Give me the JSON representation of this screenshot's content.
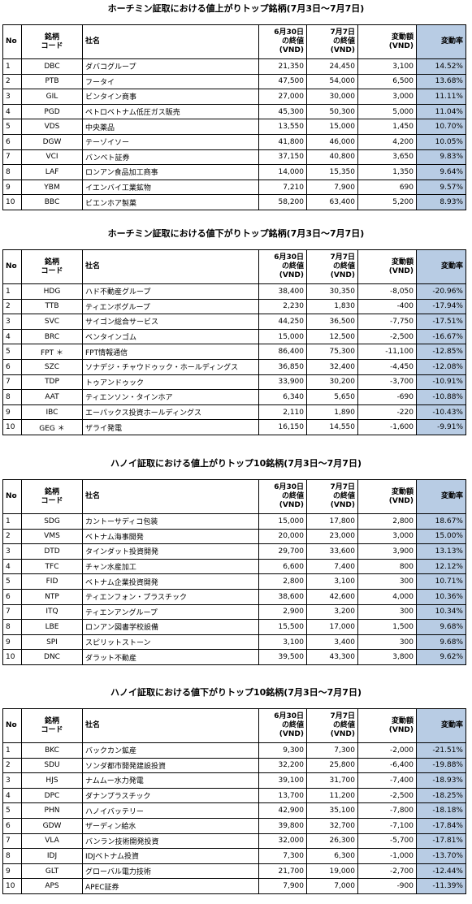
{
  "tables": [
    {
      "title": "ホーチミン証取における値上がりトップ銘柄(7月3日～7月7日)",
      "header": [
        "No",
        "銘柄\nコード",
        "社名",
        "6月30日\nの終値\n(VND)",
        "7月7日\nの終値\n(VND)",
        "変動額\n(VND)",
        "変動率"
      ],
      "rows": [
        [
          "1",
          "DBC",
          "ダバコグループ",
          "21,350",
          "24,450",
          "3,100",
          "14.52%"
        ],
        [
          "2",
          "PTB",
          "フータイ",
          "47,500",
          "54,000",
          "6,500",
          "13.68%"
        ],
        [
          "3",
          "GIL",
          "ビンタイン商事",
          "27,000",
          "30,000",
          "3,000",
          "11.11%"
        ],
        [
          "4",
          "PGD",
          "ペトロベトナム低圧ガス販売",
          "45,300",
          "50,300",
          "5,000",
          "11.04%"
        ],
        [
          "5",
          "VDS",
          "中央薬品",
          "13,550",
          "15,000",
          "1,450",
          "10.70%"
        ],
        [
          "6",
          "DGW",
          "テーゾイソー",
          "41,800",
          "46,000",
          "4,200",
          "10.05%"
        ],
        [
          "7",
          "VCI",
          "バンベト証券",
          "37,150",
          "40,800",
          "3,650",
          "9.83%"
        ],
        [
          "8",
          "LAF",
          "ロンアン食品加工商事",
          "14,000",
          "15,350",
          "1,350",
          "9.64%"
        ],
        [
          "9",
          "YBM",
          "イエンバイ工業鉱物",
          "7,210",
          "7,900",
          "690",
          "9.57%"
        ],
        [
          "10",
          "BBC",
          "ビエンホア製菓",
          "58,200",
          "63,400",
          "5,200",
          "8.93%"
        ]
      ]
    },
    {
      "title": "ホーチミン証取における値下がりトップ銘柄(7月3日～7月7日)",
      "header": [
        "No",
        "銘柄\nコード",
        "社名",
        "6月30日\nの終値\n(VND)",
        "7月7日\nの終値\n(VND)",
        "変動額\n(VND)",
        "変動率"
      ],
      "rows": [
        [
          "1",
          "HDG",
          "ハド不動産グループ",
          "38,400",
          "30,350",
          "-8,050",
          "-20.96%"
        ],
        [
          "2",
          "TTB",
          "ティエンボグループ",
          "2,230",
          "1,830",
          "-400",
          "-17.94%"
        ],
        [
          "3",
          "SVC",
          "サイゴン総合サービス",
          "44,250",
          "36,500",
          "-7,750",
          "-17.51%"
        ],
        [
          "4",
          "BRC",
          "ベンタインゴム",
          "15,000",
          "12,500",
          "-2,500",
          "-16.67%"
        ],
        [
          "5",
          "FPT ＊",
          "FPT情報通信",
          "86,400",
          "75,300",
          "-11,100",
          "-12.85%"
        ],
        [
          "6",
          "SZC",
          "ソナデジ・チャウドゥック・ホールディングス",
          "36,850",
          "32,400",
          "-4,450",
          "-12.08%"
        ],
        [
          "7",
          "TDP",
          "トゥアンドゥック",
          "33,900",
          "30,200",
          "-3,700",
          "-10.91%"
        ],
        [
          "8",
          "AAT",
          "ティエンソン・タインホア",
          "6,340",
          "5,650",
          "-690",
          "-10.88%"
        ],
        [
          "9",
          "IBC",
          "エーパックス投資ホールディングス",
          "2,110",
          "1,890",
          "-220",
          "-10.43%"
        ],
        [
          "10",
          "GEG ＊",
          "ザライ発電",
          "16,150",
          "14,550",
          "-1,600",
          "-9.91%"
        ]
      ]
    },
    {
      "title": "ハノイ証取における値上がりトップ10銘柄(7月3日～7月7日)",
      "header": [
        "No",
        "銘柄\nコード",
        "社名",
        "6月30日\nの終値\n(VND)",
        "7月7日\nの終値\n(VND)",
        "変動額\n(VND)",
        "変動率"
      ],
      "rows": [
        [
          "1",
          "SDG",
          "カントーサディコ包装",
          "15,000",
          "17,800",
          "2,800",
          "18.67%"
        ],
        [
          "2",
          "VMS",
          "ベトナム海事開発",
          "20,000",
          "23,000",
          "3,000",
          "15.00%"
        ],
        [
          "3",
          "DTD",
          "タインダット投資開発",
          "29,700",
          "33,600",
          "3,900",
          "13.13%"
        ],
        [
          "4",
          "TFC",
          "チャン水産加工",
          "6,600",
          "7,400",
          "800",
          "12.12%"
        ],
        [
          "5",
          "FID",
          "ベトナム企業投資開発",
          "2,800",
          "3,100",
          "300",
          "10.71%"
        ],
        [
          "6",
          "NTP",
          "ティエンフォン・プラスチック",
          "38,600",
          "42,600",
          "4,000",
          "10.36%"
        ],
        [
          "7",
          "ITQ",
          "ティエンアングループ",
          "2,900",
          "3,200",
          "300",
          "10.34%"
        ],
        [
          "8",
          "LBE",
          "ロンアン図書学校設備",
          "15,500",
          "17,000",
          "1,500",
          "9.68%"
        ],
        [
          "9",
          "SPI",
          "スピリットストーン",
          "3,100",
          "3,400",
          "300",
          "9.68%"
        ],
        [
          "10",
          "DNC",
          "ダラット不動産",
          "39,500",
          "43,300",
          "3,800",
          "9.62%"
        ]
      ]
    },
    {
      "title": "ハノイ証取における値下がりトップ10銘柄(7月3日～7月7日)",
      "header": [
        "No",
        "銘柄\nコード",
        "社名",
        "6月30日\nの終値\n(VND)",
        "7月7日\nの終値\n(VND)",
        "変動額\n(VND)",
        "変動率"
      ],
      "rows": [
        [
          "1",
          "BKC",
          "バックカン鉱産",
          "9,300",
          "7,300",
          "-2,000",
          "-21.51%"
        ],
        [
          "2",
          "SDU",
          "ソンダ都市開発建設投資",
          "32,200",
          "25,800",
          "-6,400",
          "-19.88%"
        ],
        [
          "3",
          "HJS",
          "ナムムー水力発電",
          "39,100",
          "31,700",
          "-7,400",
          "-18.93%"
        ],
        [
          "4",
          "DPC",
          "ダナンプラスチック",
          "13,700",
          "11,200",
          "-2,500",
          "-18.25%"
        ],
        [
          "5",
          "PHN",
          "ハノイバッテリー",
          "42,900",
          "35,100",
          "-7,800",
          "-18.18%"
        ],
        [
          "6",
          "GDW",
          "ザーディン給水",
          "39,800",
          "32,700",
          "-7,100",
          "-17.84%"
        ],
        [
          "7",
          "VLA",
          "バンラン技術開発投資",
          "32,000",
          "26,300",
          "-5,700",
          "-17.81%"
        ],
        [
          "8",
          "IDJ",
          "IDJベトナム投資",
          "7,300",
          "6,300",
          "-1,000",
          "-13.70%"
        ],
        [
          "9",
          "GLT",
          "グローバル電力技術",
          "21,700",
          "19,000",
          "-2,700",
          "-12.44%"
        ],
        [
          "10",
          "APS",
          "APEC証券",
          "7,900",
          "7,000",
          "-900",
          "-11.39%"
        ]
      ]
    }
  ]
}
